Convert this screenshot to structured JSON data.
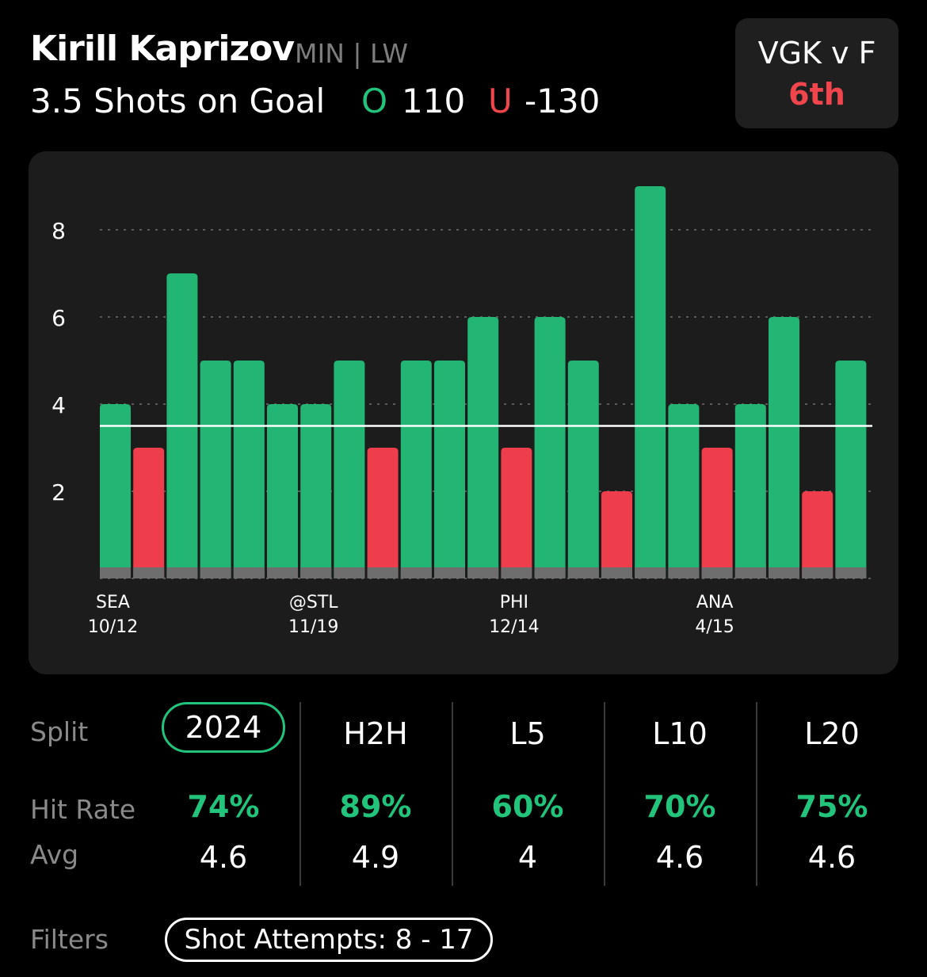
{
  "header": {
    "player_name": "Kirill Kaprizov",
    "player_meta": "MIN | LW",
    "prop": "3.5 Shots on Goal",
    "over_letter": "O",
    "over_odds": "110",
    "under_letter": "U",
    "under_odds": "-130"
  },
  "matchup": {
    "teams": "VGK v F",
    "period": "6th"
  },
  "chart_data": {
    "type": "bar",
    "title": "",
    "xlabel": "",
    "ylabel": "",
    "ylim": [
      0,
      9.5
    ],
    "yticks": [
      2,
      4,
      6,
      8
    ],
    "line_value": 3.5,
    "grid": true,
    "values": [
      4,
      3,
      7,
      5,
      5,
      4,
      4,
      5,
      3,
      5,
      5,
      6,
      3,
      6,
      5,
      2,
      9,
      4,
      3,
      4,
      6,
      2,
      5
    ],
    "results": [
      "over",
      "under",
      "over",
      "over",
      "over",
      "over",
      "over",
      "over",
      "under",
      "over",
      "over",
      "over",
      "under",
      "over",
      "over",
      "under",
      "over",
      "over",
      "under",
      "over",
      "over",
      "under",
      "over"
    ],
    "x_tick_labels": [
      {
        "index": 0,
        "team": "SEA",
        "date": "10/12"
      },
      {
        "index": 6,
        "team": "@STL",
        "date": "11/19"
      },
      {
        "index": 12,
        "team": "PHI",
        "date": "12/14"
      },
      {
        "index": 18,
        "team": "ANA",
        "date": "4/15"
      }
    ],
    "colors": {
      "over": "#22b573",
      "under": "#ee3d4b",
      "line": "#ffffff",
      "grid": "#5a5a5a",
      "base": "#6e6e6e"
    }
  },
  "splits": {
    "split_label": "Split",
    "hit_label": "Hit Rate",
    "avg_label": "Avg",
    "columns": [
      {
        "name": "2024",
        "hit": "74%",
        "avg": "4.6"
      },
      {
        "name": "H2H",
        "hit": "89%",
        "avg": "4.9"
      },
      {
        "name": "L5",
        "hit": "60%",
        "avg": "4"
      },
      {
        "name": "L10",
        "hit": "70%",
        "avg": "4.6"
      },
      {
        "name": "L20",
        "hit": "75%",
        "avg": "4.6"
      }
    ]
  },
  "filters": {
    "label": "Filters",
    "pill": "Shot Attempts: 8 - 17"
  }
}
